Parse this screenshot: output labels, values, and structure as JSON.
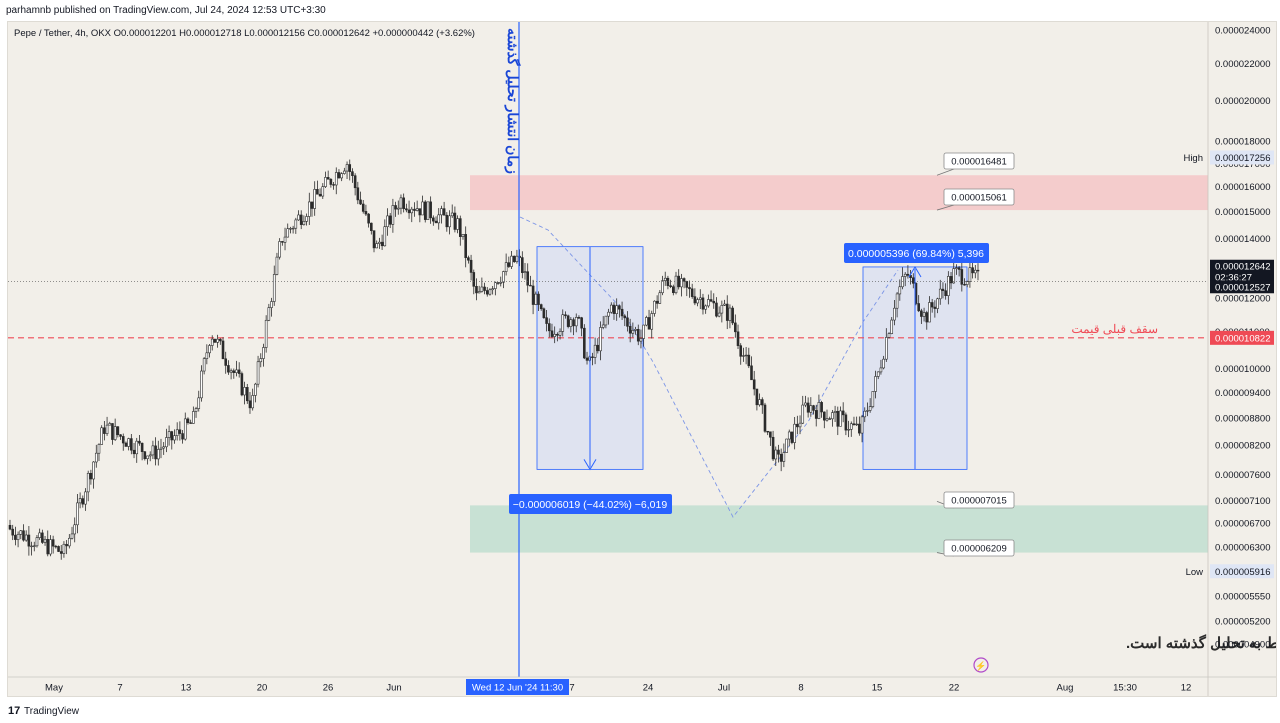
{
  "header": {
    "publisher_line": "parhamnb published on TradingView.com, Jul 24, 2024 12:53 UTC+3:30"
  },
  "footer": {
    "logo_glyph": "17",
    "brand": "TradingView"
  },
  "colors": {
    "candle_up": "#2b2b2b",
    "candle_down": "#2b2b2b",
    "blue": "#2962ff",
    "red_zone": "#f4c5c7",
    "green_zone": "#c3dfd1",
    "measure_box": "#dfe3f0",
    "ceiling_line": "#ef4a55"
  },
  "chart_data": {
    "type": "candlestick",
    "symbol_line": "Pepe / Tether, 4h, OKX  O0.000012201  H0.000012718  L0.000012156  C0.000012642  +0.000000442 (+3.62%)",
    "x_axis": {
      "ticks": [
        "May",
        "7",
        "13",
        "20",
        "26",
        "Jun",
        "Wed 12 Jun '24   11:30",
        "7",
        "24",
        "Jul",
        "8",
        "15",
        "22",
        "Aug",
        "15:30",
        "12"
      ]
    },
    "y_axis": {
      "min": 4.5e-06,
      "max": 2.45e-05,
      "scale": "log",
      "ticks": [
        "0.000024000",
        "0.000022000",
        "0.000020000",
        "0.000018000",
        "0.000017000",
        "0.000016000",
        "0.000015000",
        "0.000014000",
        "0.000012000",
        "0.000011000",
        "0.000010000",
        "0.000009400",
        "0.000008800",
        "0.000008200",
        "0.000007600",
        "0.000007100",
        "0.000006700",
        "0.000006300",
        "0.000005550",
        "0.000005200",
        "0.000004900"
      ]
    },
    "price_labels": {
      "high_label": "High",
      "high_value": "0.000017256",
      "current_value": "0.000012642",
      "countdown": "02:36:27",
      "last_value": "0.000012527",
      "ceiling_value": "0.000010822",
      "low_label": "Low",
      "low_value": "0.000005916"
    },
    "zones": [
      {
        "name": "resistance",
        "top": 1.6481e-05,
        "bottom": 1.5061e-05,
        "top_label": "0.000016481",
        "bottom_label": "0.000015061"
      },
      {
        "name": "support",
        "top": 7.015e-06,
        "bottom": 6.209e-06,
        "top_label": "0.000007015",
        "bottom_label": "0.000006209"
      }
    ],
    "ceiling_line": {
      "value": 1.0822e-05,
      "label": "سقف قبلی قیمت"
    },
    "vertical_marker": {
      "label": "زمان انتشار تحلیل گذشته"
    },
    "measures": [
      {
        "label": "−0.000006019 (−44.02%) −6,019",
        "from": 1.37e-05,
        "to": 7.7e-06
      },
      {
        "label": "0.000005396 (69.84%) 5,396",
        "from": 7.7e-06,
        "to": 1.3e-05
      }
    ],
    "note": "* تمامی نواحی و سطوحی که در چارت مشاهده می‌کنید مربوط به تحلیل گذشته است.",
    "path_points": [
      {
        "x_frac": 0.0,
        "y": 6.6e-06
      },
      {
        "x_frac": 0.046,
        "y": 6.2e-06
      },
      {
        "x_frac": 0.08,
        "y": 8.6e-06
      },
      {
        "x_frac": 0.12,
        "y": 8e-06
      },
      {
        "x_frac": 0.155,
        "y": 8.7e-06
      },
      {
        "x_frac": 0.17,
        "y": 1.1e-05
      },
      {
        "x_frac": 0.205,
        "y": 9.1e-06
      },
      {
        "x_frac": 0.23,
        "y": 1.4e-05
      },
      {
        "x_frac": 0.285,
        "y": 1.71e-05
      },
      {
        "x_frac": 0.31,
        "y": 1.36e-05
      },
      {
        "x_frac": 0.33,
        "y": 1.55e-05
      },
      {
        "x_frac": 0.38,
        "y": 1.45e-05
      },
      {
        "x_frac": 0.395,
        "y": 1.2e-05
      },
      {
        "x_frac": 0.43,
        "y": 1.33e-05
      },
      {
        "x_frac": 0.455,
        "y": 1.1e-05
      },
      {
        "x_frac": 0.48,
        "y": 1.15e-05
      },
      {
        "x_frac": 0.49,
        "y": 1e-05
      },
      {
        "x_frac": 0.51,
        "y": 1.18e-05
      },
      {
        "x_frac": 0.535,
        "y": 1.08e-05
      },
      {
        "x_frac": 0.555,
        "y": 1.26e-05
      },
      {
        "x_frac": 0.61,
        "y": 1.15e-05
      },
      {
        "x_frac": 0.635,
        "y": 9.1e-06
      },
      {
        "x_frac": 0.65,
        "y": 7.8e-06
      },
      {
        "x_frac": 0.675,
        "y": 9.1e-06
      },
      {
        "x_frac": 0.7,
        "y": 8.8e-06
      },
      {
        "x_frac": 0.72,
        "y": 8.5e-06
      },
      {
        "x_frac": 0.735,
        "y": 9.8e-06
      },
      {
        "x_frac": 0.75,
        "y": 1.2e-05
      },
      {
        "x_frac": 0.76,
        "y": 1.28e-05
      },
      {
        "x_frac": 0.775,
        "y": 1.14e-05
      },
      {
        "x_frac": 0.8,
        "y": 1.28e-05
      },
      {
        "x_frac": 0.82,
        "y": 1.26e-05
      }
    ]
  }
}
